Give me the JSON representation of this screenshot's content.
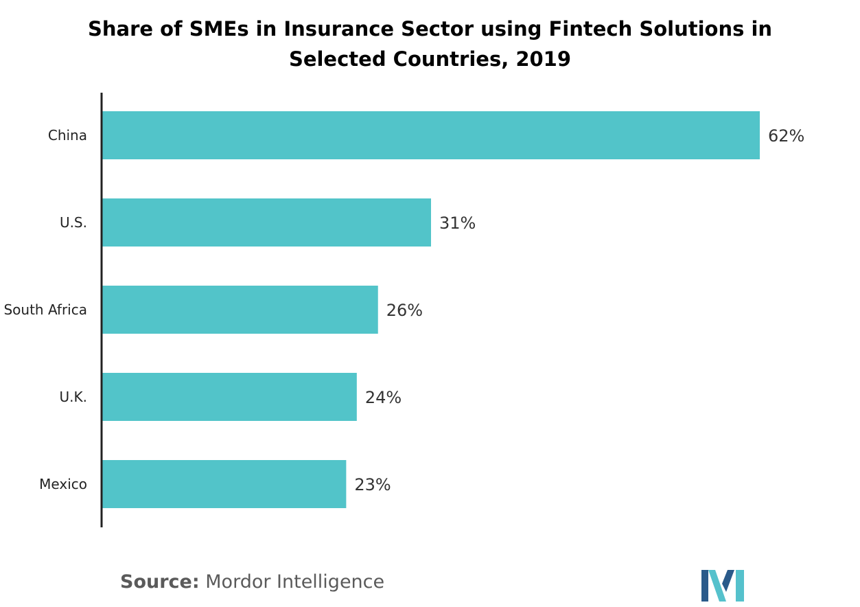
{
  "chart_data": {
    "type": "bar",
    "orientation": "horizontal",
    "title": "Share of SMEs in Insurance Sector using Fintech Solutions in Selected Countries, 2019",
    "title_lines": [
      "Share of SMEs in Insurance Sector using Fintech Solutions in",
      "Selected Countries, 2019"
    ],
    "categories": [
      "China",
      "U.S.",
      "South Africa",
      "U.K.",
      "Mexico"
    ],
    "values": [
      62,
      31,
      26,
      24,
      23
    ],
    "data_labels": [
      "62%",
      "31%",
      "26%",
      "24%",
      "23%"
    ],
    "unit": "%",
    "xlim": [
      0,
      62
    ],
    "xlabel": "",
    "ylabel": "",
    "grid": false,
    "legend": "none",
    "bar_color": "#52c4c9"
  },
  "source": {
    "label": "Source:",
    "value": "Mordor Intelligence"
  },
  "logo": {
    "name": "mordor-intelligence-logo",
    "colors": [
      "#2a5a8a",
      "#55c1cc"
    ]
  },
  "colors": {
    "axis": "#222222",
    "category_text": "#222222",
    "value_text": "#333333"
  }
}
